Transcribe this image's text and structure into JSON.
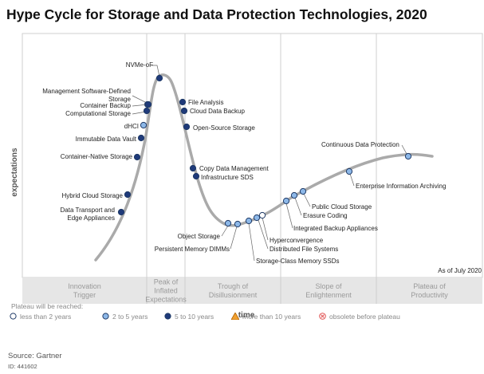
{
  "title": "Hype Cycle for Storage and Data Protection Technologies, 2020",
  "as_of": "As of July 2020",
  "legend": {
    "title": "Plateau will be reached:",
    "items": [
      {
        "label": "less than 2 years",
        "shape": "circle",
        "color": "#ffffff"
      },
      {
        "label": "2 to 5 years",
        "shape": "circle",
        "color": "#8db8e8"
      },
      {
        "label": "5 to 10 years",
        "shape": "circle",
        "color": "#1f3a7a"
      },
      {
        "label": "more than 10 years",
        "shape": "triangle",
        "color": "#f0a030"
      },
      {
        "label": "obsolete before plateau",
        "shape": "circle-x",
        "color": "#e05050"
      }
    ]
  },
  "source": "Source: Gartner",
  "doc_id": "ID: 441602",
  "chart_data": {
    "type": "scatter",
    "xlabel": "time",
    "ylabel": "expectations",
    "phases": [
      "Innovation\nTrigger",
      "Peak of\nInflated\nExpectations",
      "Trough of\nDisillusionment",
      "Slope of\nEnlightenment",
      "Plateau of\nProductivity"
    ],
    "points": [
      {
        "name": "NVMe-oF",
        "category": "5 to 10 years"
      },
      {
        "name": "Management Software-Defined\nStorage",
        "category": "5 to 10 years"
      },
      {
        "name": "Container Backup",
        "category": "5 to 10 years"
      },
      {
        "name": "Computational Storage",
        "category": "5 to 10 years"
      },
      {
        "name": "dHCI",
        "category": "2 to 5 years"
      },
      {
        "name": "Immutable Data Vault",
        "category": "5 to 10 years"
      },
      {
        "name": "Container-Native Storage",
        "category": "5 to 10 years"
      },
      {
        "name": "Hybrid Cloud Storage",
        "category": "5 to 10 years"
      },
      {
        "name": "Data Transport and\nEdge Appliances",
        "category": "5 to 10 years"
      },
      {
        "name": "File Analysis",
        "category": "5 to 10 years"
      },
      {
        "name": "Cloud Data Backup",
        "category": "5 to 10 years"
      },
      {
        "name": "Open-Source Storage",
        "category": "5 to 10 years"
      },
      {
        "name": "Copy Data Management",
        "category": "5 to 10 years"
      },
      {
        "name": "Infrastructure SDS",
        "category": "5 to 10 years"
      },
      {
        "name": "Object Storage",
        "category": "2 to 5 years"
      },
      {
        "name": "Persistent Memory DIMMs",
        "category": "2 to 5 years"
      },
      {
        "name": "Storage-Class Memory SSDs",
        "category": "2 to 5 years"
      },
      {
        "name": "Distributed File Systems",
        "category": "2 to 5 years"
      },
      {
        "name": "Hyperconvergence",
        "category": "less than 2 years"
      },
      {
        "name": "Integrated Backup Appliances",
        "category": "2 to 5 years"
      },
      {
        "name": "Erasure Coding",
        "category": "2 to 5 years"
      },
      {
        "name": "Public Cloud Storage",
        "category": "2 to 5 years"
      },
      {
        "name": "Enterprise Information Archiving",
        "category": "2 to 5 years"
      },
      {
        "name": "Continuous Data Protection",
        "category": "2 to 5 years"
      }
    ]
  }
}
